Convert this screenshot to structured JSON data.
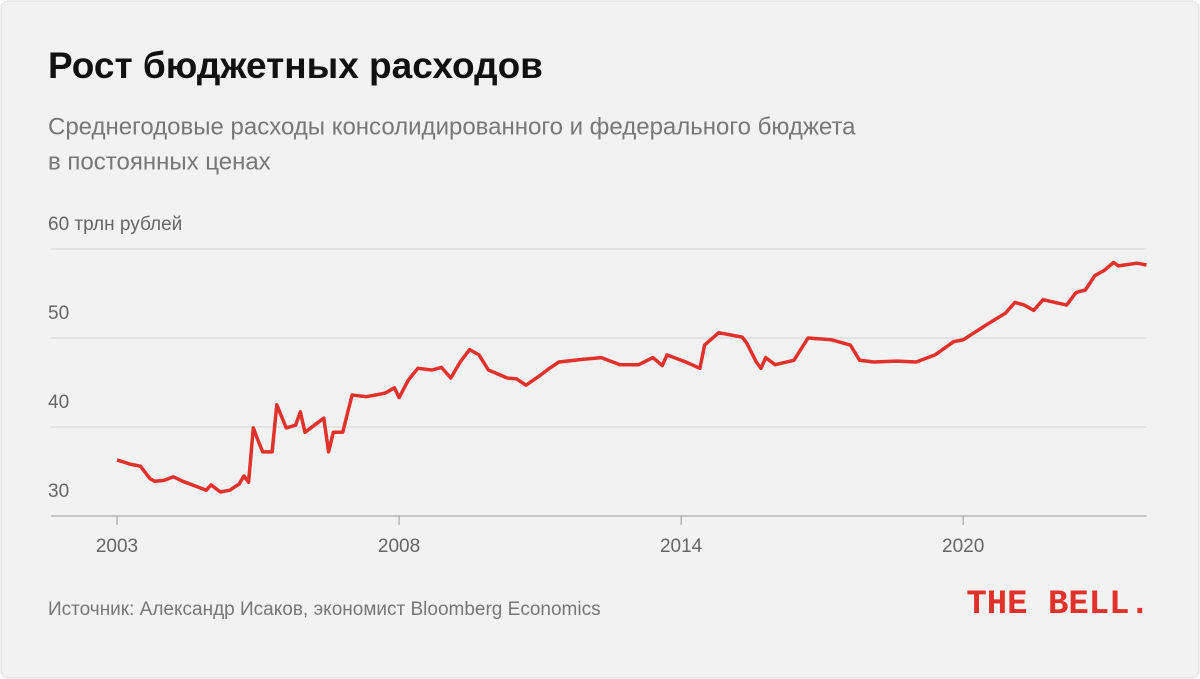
{
  "chart_data": {
    "type": "line",
    "title": "Рост бюджетных расходов",
    "subtitle": [
      "Среднегодовые расходы консолидированного и федерального бюджета",
      "в постоянных ценах"
    ],
    "source": "Источник: Александр Исаков, экономист Bloomberg Economics",
    "logo": "THE BELL.",
    "x": [
      0,
      3,
      5,
      7,
      8,
      10,
      12,
      14,
      17,
      19,
      20,
      22,
      24,
      26,
      27,
      28,
      29,
      30,
      31,
      33,
      34,
      36,
      38,
      39,
      40,
      42,
      44,
      45,
      46,
      48,
      50,
      53,
      55,
      57,
      59,
      60,
      62,
      64,
      67,
      69,
      71,
      73,
      75,
      77,
      79,
      83,
      85,
      87,
      90,
      92,
      94,
      99,
      103,
      107,
      111,
      114,
      116,
      117,
      121,
      124,
      125,
      128,
      133,
      134,
      136,
      137,
      138,
      140,
      144,
      147,
      152,
      156,
      158,
      161,
      166,
      170,
      174,
      178,
      180,
      185,
      189,
      191,
      193,
      195,
      197,
      202,
      204,
      206,
      208,
      210,
      212,
      213,
      217,
      219
    ],
    "series": [
      {
        "name": "Расходы",
        "color": "#e0312b",
        "values": [
          36.3,
          35.8,
          35.6,
          34.2,
          33.9,
          34.0,
          34.4,
          33.9,
          33.3,
          32.9,
          33.5,
          32.7,
          32.9,
          33.6,
          34.5,
          33.8,
          39.9,
          38.5,
          37.2,
          37.2,
          42.5,
          39.9,
          40.2,
          41.7,
          39.4,
          40.2,
          41.0,
          37.2,
          39.4,
          39.4,
          43.6,
          43.4,
          43.6,
          43.8,
          44.4,
          43.3,
          45.3,
          46.6,
          46.4,
          46.7,
          45.5,
          47.3,
          48.7,
          48.1,
          46.4,
          45.5,
          45.4,
          44.7,
          45.8,
          46.6,
          47.3,
          47.6,
          47.8,
          47.0,
          47.0,
          47.8,
          46.9,
          48.1,
          47.3,
          46.6,
          49.2,
          50.6,
          50.1,
          49.4,
          47.3,
          46.6,
          47.8,
          47.0,
          47.5,
          50.0,
          49.8,
          49.2,
          47.5,
          47.3,
          47.4,
          47.3,
          48.1,
          49.6,
          49.8,
          51.5,
          52.8,
          54.0,
          53.7,
          53.1,
          54.3,
          53.7,
          55.1,
          55.4,
          57.0,
          57.6,
          58.5,
          58.1,
          58.4,
          58.2
        ]
      }
    ],
    "xlim": [
      -14,
      219
    ],
    "xticks": [
      {
        "value": 0,
        "label": "2003"
      },
      {
        "value": 60,
        "label": "2008"
      },
      {
        "value": 120,
        "label": "2014"
      },
      {
        "value": 180,
        "label": "2020"
      }
    ],
    "ylim": [
      30,
      60
    ],
    "yticks": [
      30,
      40,
      50,
      {
        "value": 60,
        "label": "60 трлн рублей"
      }
    ],
    "grid": true
  }
}
